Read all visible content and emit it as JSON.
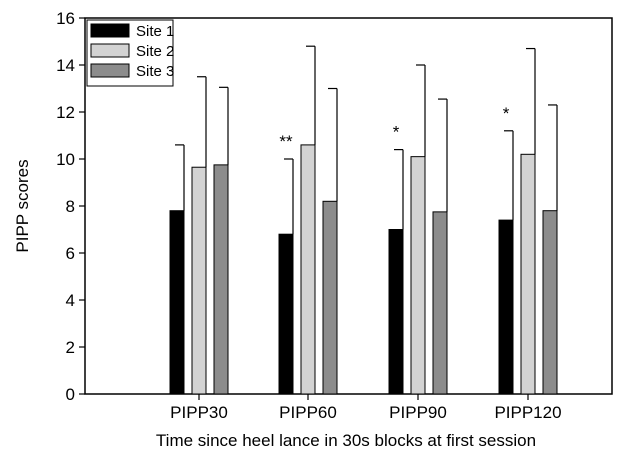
{
  "chart_data": {
    "type": "bar",
    "title": "",
    "xlabel": "Time since heel lance in 30s blocks at first session",
    "ylabel": "PIPP scores",
    "categories": [
      "PIPP30",
      "PIPP60",
      "PIPP90",
      "PIPP120"
    ],
    "ylim": [
      0,
      16
    ],
    "yticks": [
      "0",
      "2",
      "4",
      "6",
      "8",
      "10",
      "12",
      "14",
      "16"
    ],
    "series": [
      {
        "name": "Site 1",
        "color": "#000000",
        "values": [
          7.8,
          6.8,
          7.0,
          7.4
        ],
        "error": [
          2.8,
          3.2,
          3.4,
          3.8
        ]
      },
      {
        "name": "Site 2",
        "color": "#d3d3d3",
        "values": [
          9.65,
          10.6,
          10.1,
          10.2
        ],
        "error": [
          3.85,
          4.2,
          3.9,
          4.5
        ]
      },
      {
        "name": "Site 3",
        "color": "#8c8c8c",
        "values": [
          9.75,
          8.2,
          7.75,
          7.8
        ],
        "error": [
          3.3,
          4.8,
          4.8,
          4.5
        ]
      }
    ],
    "annotations": [
      "",
      "**",
      "*",
      "*"
    ],
    "legend_position": "top-left",
    "grid": false
  }
}
